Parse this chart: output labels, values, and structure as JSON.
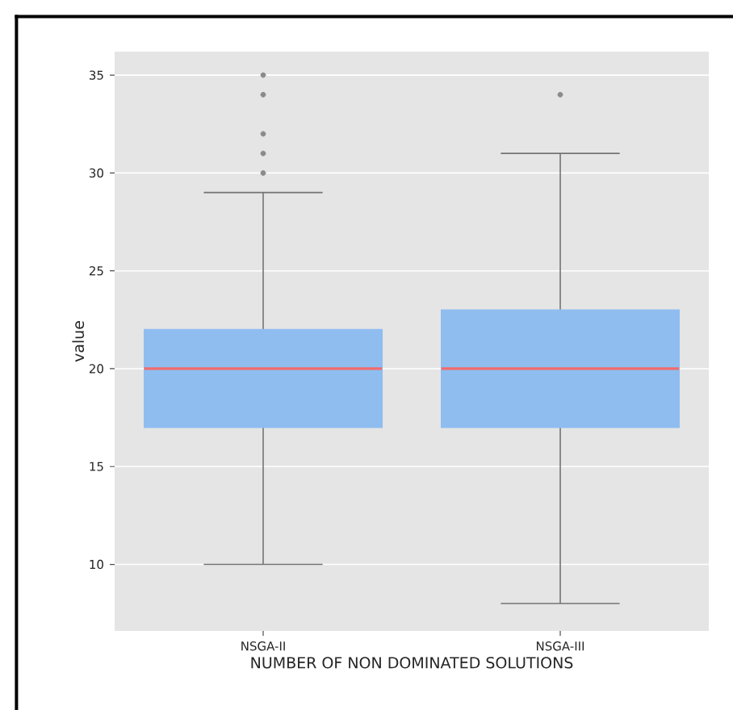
{
  "chart_data": {
    "type": "box",
    "xlabel": "NUMBER OF NON DOMINATED SOLUTIONS",
    "ylabel": "value",
    "categories": [
      "NSGA-II",
      "NSGA-III"
    ],
    "color": "#8fbdf0",
    "boxes": [
      {
        "low": 10,
        "q1": 17,
        "median": 20,
        "q3": 22,
        "high": 29,
        "outliers": [
          30,
          31,
          32,
          34,
          35
        ]
      },
      {
        "low": 8,
        "q1": 17,
        "median": 20,
        "q3": 23,
        "high": 31,
        "outliers": [
          34
        ]
      }
    ],
    "ylim": [
      6.6,
      36.2
    ],
    "yticks": [
      10,
      15,
      20,
      25,
      30,
      35
    ],
    "grid": "y"
  }
}
